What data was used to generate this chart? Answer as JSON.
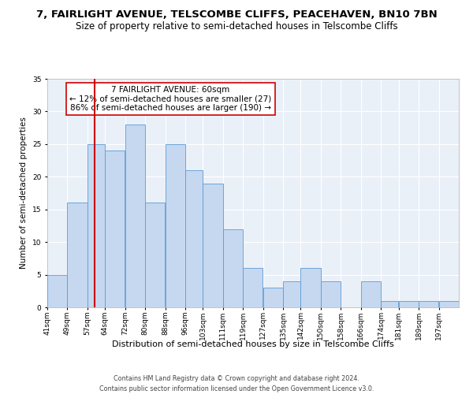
{
  "title1": "7, FAIRLIGHT AVENUE, TELSCOMBE CLIFFS, PEACEHAVEN, BN10 7BN",
  "title2": "Size of property relative to semi-detached houses in Telscombe Cliffs",
  "xlabel": "Distribution of semi-detached houses by size in Telscombe Cliffs",
  "ylabel": "Number of semi-detached properties",
  "footer1": "Contains HM Land Registry data © Crown copyright and database right 2024.",
  "footer2": "Contains public sector information licensed under the Open Government Licence v3.0.",
  "annotation_line1": "7 FAIRLIGHT AVENUE: 60sqm",
  "annotation_line2": "← 12% of semi-detached houses are smaller (27)",
  "annotation_line3": "86% of semi-detached houses are larger (190) →",
  "property_size": 60,
  "bar_left_edges": [
    41,
    49,
    57,
    64,
    72,
    80,
    88,
    96,
    103,
    111,
    119,
    127,
    135,
    142,
    150,
    158,
    166,
    174,
    181,
    189,
    197
  ],
  "bar_labels": [
    "41sqm",
    "49sqm",
    "57sqm",
    "64sqm",
    "72sqm",
    "80sqm",
    "88sqm",
    "96sqm",
    "103sqm",
    "111sqm",
    "119sqm",
    "127sqm",
    "135sqm",
    "142sqm",
    "150sqm",
    "158sqm",
    "166sqm",
    "174sqm",
    "181sqm",
    "189sqm",
    "197sqm"
  ],
  "bar_heights": [
    5,
    16,
    25,
    24,
    28,
    16,
    25,
    21,
    19,
    12,
    6,
    3,
    4,
    6,
    4,
    0,
    4,
    1,
    1,
    1,
    1
  ],
  "bar_widths": [
    8,
    8,
    7,
    8,
    8,
    8,
    8,
    7,
    8,
    8,
    8,
    8,
    7,
    8,
    8,
    8,
    8,
    7,
    8,
    8,
    8
  ],
  "bar_color": "#c5d8f0",
  "bar_edge_color": "#5b9bd5",
  "vline_color": "#cc0000",
  "vline_x": 60,
  "ylim": [
    0,
    35
  ],
  "yticks": [
    0,
    5,
    10,
    15,
    20,
    25,
    30,
    35
  ],
  "bg_color": "#eaf0f8",
  "grid_color": "#ffffff",
  "annotation_box_color": "#ffffff",
  "annotation_box_edge": "#cc0000",
  "title1_fontsize": 9.5,
  "title2_fontsize": 8.5,
  "xlabel_fontsize": 8,
  "ylabel_fontsize": 7.5,
  "tick_fontsize": 6.5,
  "annotation_fontsize": 7.5,
  "footer_fontsize": 5.8
}
